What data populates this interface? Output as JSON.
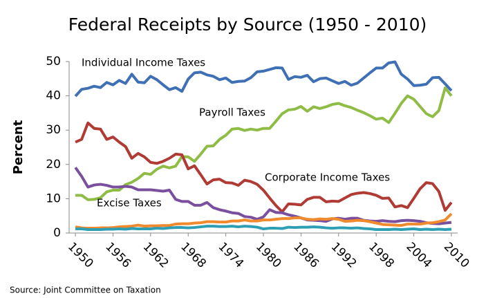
{
  "chart_data": {
    "type": "line",
    "title": "Federal Receipts by Source (1950 - 2010)",
    "y_label": "Percent",
    "source": "Source: Joint Committee on Taxation",
    "x": [
      1950,
      1951,
      1952,
      1953,
      1954,
      1955,
      1956,
      1957,
      1958,
      1959,
      1960,
      1961,
      1962,
      1963,
      1964,
      1965,
      1966,
      1967,
      1968,
      1969,
      1970,
      1971,
      1972,
      1973,
      1974,
      1975,
      1976,
      1977,
      1978,
      1979,
      1980,
      1981,
      1982,
      1983,
      1984,
      1985,
      1986,
      1987,
      1988,
      1989,
      1990,
      1991,
      1992,
      1993,
      1994,
      1995,
      1996,
      1997,
      1998,
      1999,
      2000,
      2001,
      2002,
      2003,
      2004,
      2005,
      2006,
      2007,
      2008,
      2009,
      2010
    ],
    "xlim": [
      1949,
      2011
    ],
    "xticks": [
      1950,
      1956,
      1962,
      1968,
      1974,
      1980,
      1986,
      1992,
      1998,
      2004,
      2010
    ],
    "ylim": [
      0,
      50
    ],
    "yticks": [
      0,
      10,
      20,
      30,
      40,
      50
    ],
    "grid": false,
    "series": [
      {
        "name": "Individual Income Taxes",
        "color": "#3f6fb5",
        "values": [
          39.9,
          41.9,
          42.2,
          42.8,
          42.4,
          43.9,
          43.2,
          44.5,
          43.6,
          46.3,
          44.0,
          43.8,
          45.7,
          44.7,
          43.2,
          41.8,
          42.4,
          41.3,
          44.9,
          46.7,
          46.9,
          46.1,
          45.7,
          44.7,
          45.2,
          43.9,
          44.2,
          44.3,
          45.3,
          47.0,
          47.2,
          47.7,
          48.2,
          48.1,
          44.8,
          45.6,
          45.4,
          46.0,
          44.1,
          45.0,
          45.2,
          44.4,
          43.6,
          44.2,
          43.1,
          43.7,
          45.2,
          46.7,
          48.1,
          48.1,
          49.6,
          49.9,
          46.3,
          44.9,
          43.0,
          43.1,
          43.4,
          45.3,
          45.4,
          43.5,
          41.5
        ]
      },
      {
        "name": "Payroll Taxes",
        "color": "#8fbc45",
        "values": [
          11.0,
          11.0,
          9.7,
          9.8,
          10.3,
          12.0,
          12.5,
          12.5,
          14.1,
          14.8,
          15.9,
          17.4,
          17.1,
          18.6,
          19.5,
          19.0,
          19.5,
          22.3,
          22.2,
          20.9,
          23.0,
          25.3,
          25.4,
          27.3,
          28.5,
          30.3,
          30.5,
          29.9,
          30.3,
          30.0,
          30.5,
          30.5,
          32.6,
          34.8,
          35.9,
          36.1,
          36.9,
          35.5,
          36.8,
          36.3,
          36.8,
          37.5,
          37.8,
          37.1,
          36.6,
          35.8,
          35.1,
          34.2,
          33.2,
          33.5,
          32.2,
          34.9,
          37.8,
          40.0,
          39.0,
          36.9,
          34.8,
          33.9,
          35.7,
          42.3,
          40.0
        ]
      },
      {
        "name": "Corporate Income Taxes",
        "color": "#b03a34",
        "values": [
          26.5,
          27.3,
          32.1,
          30.5,
          30.3,
          27.3,
          28.0,
          26.5,
          25.2,
          21.8,
          23.2,
          22.2,
          20.6,
          20.3,
          20.9,
          21.8,
          23.0,
          22.8,
          18.7,
          19.6,
          17.0,
          14.3,
          15.5,
          15.7,
          14.7,
          14.6,
          13.9,
          15.4,
          15.0,
          14.2,
          12.5,
          10.2,
          8.0,
          6.2,
          8.5,
          8.4,
          8.2,
          9.8,
          10.4,
          10.4,
          9.1,
          9.3,
          9.2,
          10.2,
          11.2,
          11.6,
          11.8,
          11.5,
          11.0,
          10.1,
          10.2,
          7.6,
          8.0,
          7.4,
          10.1,
          12.9,
          14.7,
          14.4,
          12.1,
          6.6,
          8.9
        ]
      },
      {
        "name": "Excise Taxes",
        "color": "#7a4f9e",
        "values": [
          19.1,
          16.5,
          13.4,
          14.0,
          14.2,
          13.9,
          13.4,
          13.4,
          13.6,
          13.4,
          12.6,
          12.6,
          12.6,
          12.4,
          12.2,
          12.5,
          9.8,
          9.2,
          9.2,
          8.1,
          8.1,
          8.9,
          7.4,
          6.8,
          6.4,
          5.9,
          5.7,
          4.8,
          4.6,
          4.0,
          4.7,
          6.8,
          6.0,
          5.9,
          5.3,
          4.9,
          4.4,
          3.8,
          3.7,
          3.6,
          3.4,
          4.1,
          4.3,
          4.0,
          4.3,
          4.3,
          3.7,
          3.5,
          3.4,
          3.6,
          3.4,
          3.3,
          3.6,
          3.7,
          3.6,
          3.4,
          3.0,
          2.8,
          2.7,
          2.9,
          3.1
        ]
      },
      {
        "color": "#f08a2c",
        "values": [
          1.8,
          1.5,
          1.4,
          1.4,
          1.5,
          1.5,
          1.6,
          1.8,
          1.9,
          2.0,
          2.3,
          2.0,
          2.1,
          2.1,
          2.2,
          2.2,
          2.6,
          2.7,
          2.7,
          2.9,
          3.0,
          3.3,
          3.3,
          3.2,
          3.2,
          3.5,
          3.5,
          3.8,
          3.5,
          3.5,
          3.8,
          3.8,
          4.0,
          4.2,
          4.2,
          4.4,
          4.4,
          4.0,
          3.9,
          4.1,
          4.0,
          4.2,
          4.0,
          3.4,
          3.5,
          3.7,
          3.6,
          3.3,
          2.9,
          2.5,
          2.4,
          2.3,
          2.2,
          2.6,
          2.6,
          2.6,
          2.9,
          3.0,
          3.3,
          3.8,
          5.6
        ]
      },
      {
        "color": "#2d9fb4",
        "values": [
          1.2,
          1.2,
          1.0,
          1.0,
          1.0,
          1.1,
          1.1,
          1.2,
          1.1,
          1.3,
          1.2,
          1.2,
          1.2,
          1.4,
          1.3,
          1.5,
          1.6,
          1.6,
          1.5,
          1.6,
          1.8,
          2.0,
          2.0,
          1.9,
          1.9,
          2.0,
          1.8,
          2.0,
          1.9,
          1.7,
          1.2,
          1.4,
          1.4,
          1.3,
          1.7,
          1.6,
          1.7,
          1.7,
          1.8,
          1.7,
          1.5,
          1.4,
          1.5,
          1.5,
          1.4,
          1.5,
          1.3,
          1.2,
          1.0,
          1.0,
          1.0,
          1.1,
          1.0,
          1.1,
          1.2,
          1.0,
          1.1,
          1.0,
          1.1,
          1.0,
          1.1
        ]
      }
    ]
  }
}
